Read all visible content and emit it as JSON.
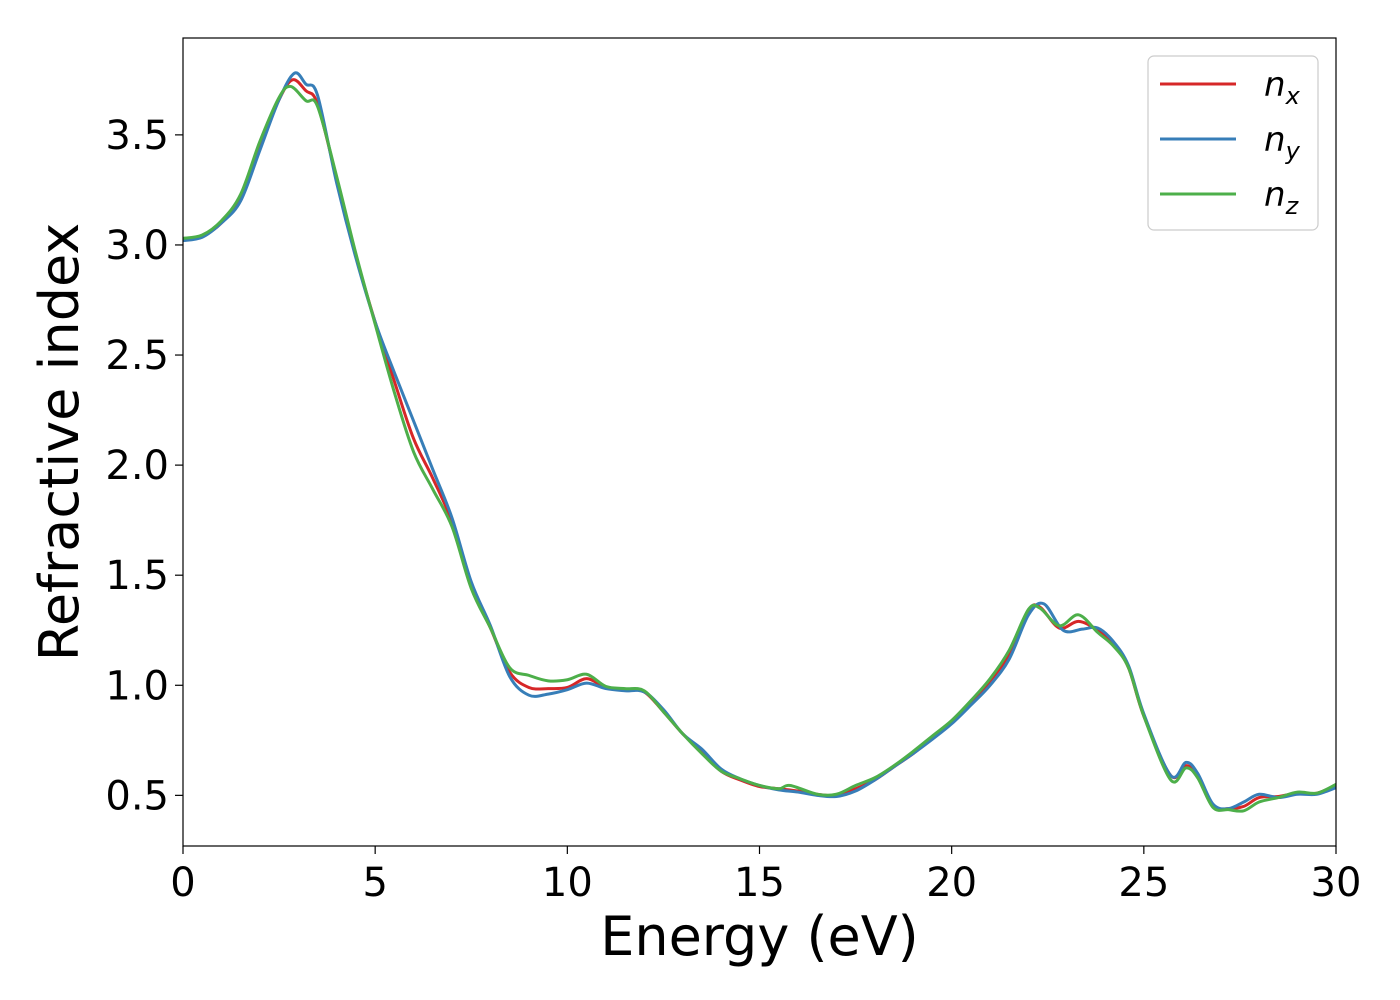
{
  "chart_data": {
    "type": "line",
    "title": "",
    "xlabel": "Energy (eV)",
    "ylabel": "Refractive index",
    "xlim": [
      0,
      30
    ],
    "ylim": [
      0.27,
      3.94
    ],
    "xticks": [
      0,
      5,
      10,
      15,
      20,
      25,
      30
    ],
    "xtick_labels": [
      "0",
      "5",
      "10",
      "15",
      "20",
      "25",
      "30"
    ],
    "yticks": [
      0.5,
      1.0,
      1.5,
      2.0,
      2.5,
      3.0,
      3.5
    ],
    "ytick_labels": [
      "0.5",
      "1.0",
      "1.5",
      "2.0",
      "2.5",
      "3.0",
      "3.5"
    ],
    "grid": false,
    "legend_position": "top-right",
    "series": [
      {
        "name": "n",
        "subscript": "x",
        "color": "#d62728",
        "points": [
          [
            0,
            3.02
          ],
          [
            0.5,
            3.04
          ],
          [
            1.0,
            3.1
          ],
          [
            1.5,
            3.22
          ],
          [
            2.0,
            3.45
          ],
          [
            2.5,
            3.66
          ],
          [
            2.85,
            3.75
          ],
          [
            3.2,
            3.7
          ],
          [
            3.5,
            3.64
          ],
          [
            4.0,
            3.3
          ],
          [
            4.5,
            2.95
          ],
          [
            5.0,
            2.65
          ],
          [
            5.5,
            2.38
          ],
          [
            6.0,
            2.12
          ],
          [
            6.5,
            1.94
          ],
          [
            7.0,
            1.74
          ],
          [
            7.5,
            1.45
          ],
          [
            8.0,
            1.26
          ],
          [
            8.5,
            1.06
          ],
          [
            9.0,
            0.99
          ],
          [
            9.5,
            0.985
          ],
          [
            10.0,
            0.99
          ],
          [
            10.5,
            1.03
          ],
          [
            11.0,
            0.99
          ],
          [
            11.5,
            0.98
          ],
          [
            12.0,
            0.97
          ],
          [
            12.5,
            0.88
          ],
          [
            13.0,
            0.78
          ],
          [
            13.5,
            0.7
          ],
          [
            14.0,
            0.61
          ],
          [
            14.5,
            0.57
          ],
          [
            15.0,
            0.54
          ],
          [
            15.5,
            0.53
          ],
          [
            16.0,
            0.52
          ],
          [
            16.5,
            0.505
          ],
          [
            17.0,
            0.5
          ],
          [
            17.5,
            0.53
          ],
          [
            18.0,
            0.57
          ],
          [
            18.5,
            0.63
          ],
          [
            19.0,
            0.69
          ],
          [
            19.5,
            0.76
          ],
          [
            20.0,
            0.83
          ],
          [
            20.5,
            0.92
          ],
          [
            21.0,
            1.02
          ],
          [
            21.5,
            1.14
          ],
          [
            22.0,
            1.34
          ],
          [
            22.3,
            1.355
          ],
          [
            22.8,
            1.26
          ],
          [
            23.3,
            1.29
          ],
          [
            23.8,
            1.25
          ],
          [
            24.2,
            1.19
          ],
          [
            24.6,
            1.08
          ],
          [
            25.0,
            0.86
          ],
          [
            25.7,
            0.59
          ],
          [
            26.1,
            0.635
          ],
          [
            26.4,
            0.59
          ],
          [
            26.8,
            0.45
          ],
          [
            27.2,
            0.44
          ],
          [
            27.6,
            0.45
          ],
          [
            28.0,
            0.49
          ],
          [
            28.5,
            0.495
          ],
          [
            29.0,
            0.51
          ],
          [
            29.5,
            0.51
          ],
          [
            30.0,
            0.545
          ]
        ]
      },
      {
        "name": "n",
        "subscript": "y",
        "color": "#377eb8",
        "points": [
          [
            0,
            3.02
          ],
          [
            0.5,
            3.035
          ],
          [
            1.0,
            3.1
          ],
          [
            1.5,
            3.2
          ],
          [
            2.0,
            3.43
          ],
          [
            2.5,
            3.66
          ],
          [
            2.9,
            3.78
          ],
          [
            3.2,
            3.73
          ],
          [
            3.5,
            3.68
          ],
          [
            4.0,
            3.28
          ],
          [
            4.5,
            2.94
          ],
          [
            5.0,
            2.65
          ],
          [
            5.5,
            2.42
          ],
          [
            6.0,
            2.2
          ],
          [
            6.5,
            1.98
          ],
          [
            7.0,
            1.76
          ],
          [
            7.5,
            1.47
          ],
          [
            8.0,
            1.27
          ],
          [
            8.5,
            1.04
          ],
          [
            9.0,
            0.955
          ],
          [
            9.5,
            0.96
          ],
          [
            10.0,
            0.98
          ],
          [
            10.5,
            1.01
          ],
          [
            11.0,
            0.985
          ],
          [
            11.5,
            0.975
          ],
          [
            12.0,
            0.97
          ],
          [
            12.5,
            0.89
          ],
          [
            13.0,
            0.78
          ],
          [
            13.5,
            0.71
          ],
          [
            14.0,
            0.62
          ],
          [
            14.5,
            0.575
          ],
          [
            15.0,
            0.545
          ],
          [
            15.5,
            0.525
          ],
          [
            16.0,
            0.515
          ],
          [
            16.5,
            0.5
          ],
          [
            17.0,
            0.495
          ],
          [
            17.5,
            0.52
          ],
          [
            18.0,
            0.57
          ],
          [
            18.5,
            0.63
          ],
          [
            19.0,
            0.69
          ],
          [
            19.5,
            0.755
          ],
          [
            20.0,
            0.825
          ],
          [
            20.5,
            0.91
          ],
          [
            21.0,
            1.0
          ],
          [
            21.5,
            1.12
          ],
          [
            22.0,
            1.32
          ],
          [
            22.4,
            1.37
          ],
          [
            22.9,
            1.25
          ],
          [
            23.4,
            1.255
          ],
          [
            23.8,
            1.26
          ],
          [
            24.2,
            1.2
          ],
          [
            24.6,
            1.09
          ],
          [
            25.0,
            0.87
          ],
          [
            25.7,
            0.59
          ],
          [
            26.1,
            0.65
          ],
          [
            26.4,
            0.6
          ],
          [
            26.8,
            0.46
          ],
          [
            27.2,
            0.44
          ],
          [
            27.6,
            0.47
          ],
          [
            28.0,
            0.505
          ],
          [
            28.5,
            0.49
          ],
          [
            29.0,
            0.505
          ],
          [
            29.5,
            0.505
          ],
          [
            30.0,
            0.535
          ]
        ]
      },
      {
        "name": "n",
        "subscript": "z",
        "color": "#4daf4a",
        "points": [
          [
            0,
            3.03
          ],
          [
            0.5,
            3.045
          ],
          [
            1.0,
            3.11
          ],
          [
            1.5,
            3.23
          ],
          [
            2.0,
            3.47
          ],
          [
            2.5,
            3.67
          ],
          [
            2.8,
            3.72
          ],
          [
            3.2,
            3.655
          ],
          [
            3.5,
            3.63
          ],
          [
            4.0,
            3.31
          ],
          [
            4.5,
            2.96
          ],
          [
            5.0,
            2.64
          ],
          [
            5.5,
            2.33
          ],
          [
            6.0,
            2.06
          ],
          [
            6.5,
            1.89
          ],
          [
            7.0,
            1.72
          ],
          [
            7.5,
            1.44
          ],
          [
            8.0,
            1.26
          ],
          [
            8.5,
            1.08
          ],
          [
            9.0,
            1.045
          ],
          [
            9.5,
            1.02
          ],
          [
            10.0,
            1.025
          ],
          [
            10.5,
            1.05
          ],
          [
            11.0,
            0.995
          ],
          [
            11.5,
            0.985
          ],
          [
            12.0,
            0.975
          ],
          [
            12.5,
            0.88
          ],
          [
            13.0,
            0.78
          ],
          [
            13.5,
            0.69
          ],
          [
            14.0,
            0.61
          ],
          [
            14.5,
            0.575
          ],
          [
            15.0,
            0.545
          ],
          [
            15.5,
            0.53
          ],
          [
            15.8,
            0.545
          ],
          [
            16.5,
            0.505
          ],
          [
            17.0,
            0.505
          ],
          [
            17.5,
            0.545
          ],
          [
            18.0,
            0.58
          ],
          [
            18.5,
            0.635
          ],
          [
            19.0,
            0.7
          ],
          [
            19.5,
            0.77
          ],
          [
            20.0,
            0.84
          ],
          [
            20.5,
            0.93
          ],
          [
            21.0,
            1.03
          ],
          [
            21.5,
            1.16
          ],
          [
            22.0,
            1.345
          ],
          [
            22.3,
            1.35
          ],
          [
            22.8,
            1.27
          ],
          [
            23.3,
            1.32
          ],
          [
            23.8,
            1.24
          ],
          [
            24.2,
            1.18
          ],
          [
            24.6,
            1.08
          ],
          [
            25.0,
            0.86
          ],
          [
            25.7,
            0.57
          ],
          [
            26.1,
            0.625
          ],
          [
            26.4,
            0.58
          ],
          [
            26.8,
            0.445
          ],
          [
            27.2,
            0.435
          ],
          [
            27.6,
            0.43
          ],
          [
            28.0,
            0.47
          ],
          [
            28.5,
            0.49
          ],
          [
            29.0,
            0.515
          ],
          [
            29.5,
            0.51
          ],
          [
            30.0,
            0.55
          ]
        ]
      }
    ]
  }
}
